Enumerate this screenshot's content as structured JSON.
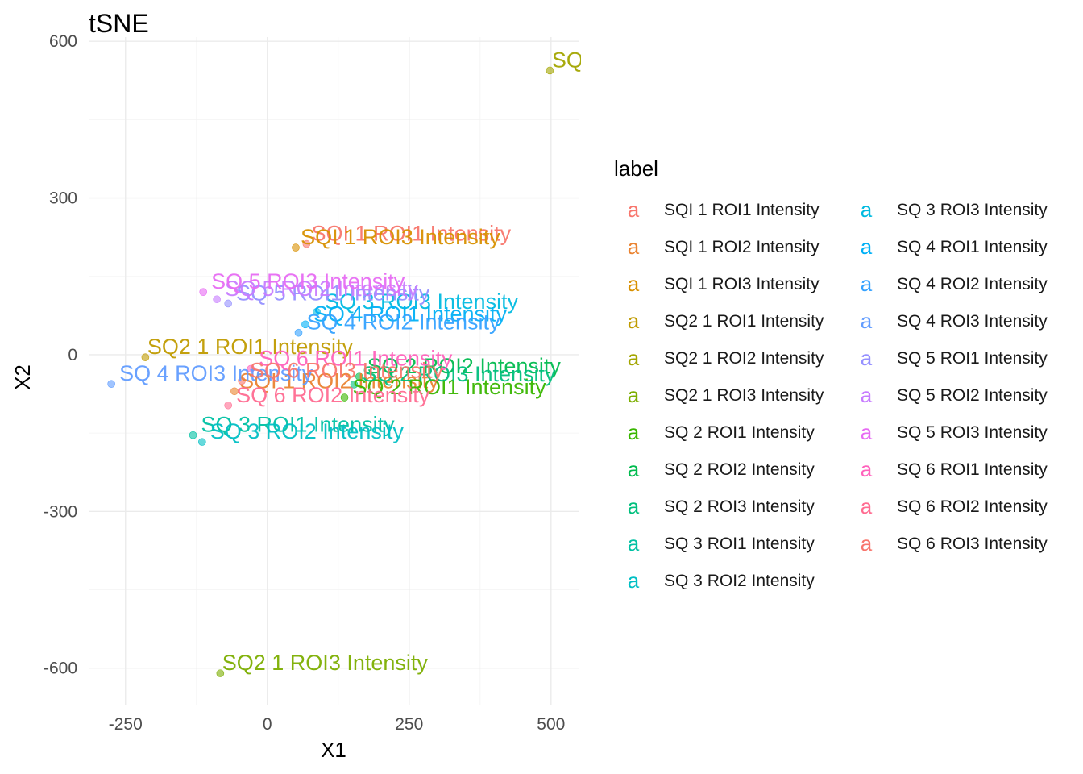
{
  "chart_data": {
    "type": "scatter",
    "title": "tSNE",
    "xlabel": "X1",
    "ylabel": "X2",
    "xlim": [
      -315,
      550
    ],
    "ylim": [
      -670,
      608
    ],
    "x_ticks": [
      -250,
      0,
      250,
      500
    ],
    "x_tick_labels": [
      "-250",
      "0",
      "250",
      "500"
    ],
    "y_ticks": [
      -600,
      -300,
      0,
      300,
      600
    ],
    "y_tick_labels": [
      "-600",
      "-300",
      "0",
      "300",
      "600"
    ],
    "grid": true,
    "legend": {
      "title": "label",
      "placement": "right",
      "columns": 2,
      "key_glyph": "a"
    },
    "series": [
      {
        "name": "SQI 1 ROI1 Intensity",
        "color": "#F8766D",
        "x": 69,
        "y": 212
      },
      {
        "name": "SQI 1 ROI2 Intensity",
        "color": "#EA8331",
        "x": -58,
        "y": -70
      },
      {
        "name": "SQI 1 ROI3 Intensity",
        "color": "#D89000",
        "x": 50,
        "y": 205
      },
      {
        "name": "SQ2 1 ROI1 Intensity",
        "color": "#C09B00",
        "x": -215,
        "y": -5
      },
      {
        "name": "SQ2 1 ROI2 Intensity",
        "color": "#A3A500",
        "x": 498,
        "y": 544
      },
      {
        "name": "SQ2 1 ROI3 Intensity",
        "color": "#7CAE00",
        "x": -83,
        "y": -610
      },
      {
        "name": "SQ 2 ROI1 Intensity",
        "color": "#39B600",
        "x": 136,
        "y": -82
      },
      {
        "name": "SQ 2 ROI2 Intensity",
        "color": "#00BB4E",
        "x": 162,
        "y": -42
      },
      {
        "name": "SQ 2 ROI3 Intensity",
        "color": "#00BF7D",
        "x": 153,
        "y": -57
      },
      {
        "name": "SQ 3 ROI1 Intensity",
        "color": "#00C1A3",
        "x": -131,
        "y": -154
      },
      {
        "name": "SQ 3 ROI2 Intensity",
        "color": "#00BFC4",
        "x": -115,
        "y": -167
      },
      {
        "name": "SQ 3 ROI3 Intensity",
        "color": "#00BAE0",
        "x": 87,
        "y": 82
      },
      {
        "name": "SQ 4 ROI1 Intensity",
        "color": "#00B0F6",
        "x": 67,
        "y": 58
      },
      {
        "name": "SQ 4 ROI2 Intensity",
        "color": "#35A2FF",
        "x": 55,
        "y": 42
      },
      {
        "name": "SQ 4 ROI3 Intensity",
        "color": "#619CFF",
        "x": -275,
        "y": -56
      },
      {
        "name": "SQ 5 ROI1 Intensity",
        "color": "#9590FF",
        "x": -69,
        "y": 98
      },
      {
        "name": "SQ 5 ROI2 Intensity",
        "color": "#C77CFF",
        "x": -89,
        "y": 106
      },
      {
        "name": "SQ 5 ROI3 Intensity",
        "color": "#E76BF3",
        "x": -113,
        "y": 120
      },
      {
        "name": "SQ 6 ROI1 Intensity",
        "color": "#FF62BC",
        "x": -29,
        "y": -27
      },
      {
        "name": "SQ 6 ROI2 Intensity",
        "color": "#FF6C91",
        "x": -69,
        "y": -97
      },
      {
        "name": "SQ 6 ROI3 Intensity",
        "color": "#F8766D",
        "x": -45,
        "y": -50
      }
    ]
  }
}
